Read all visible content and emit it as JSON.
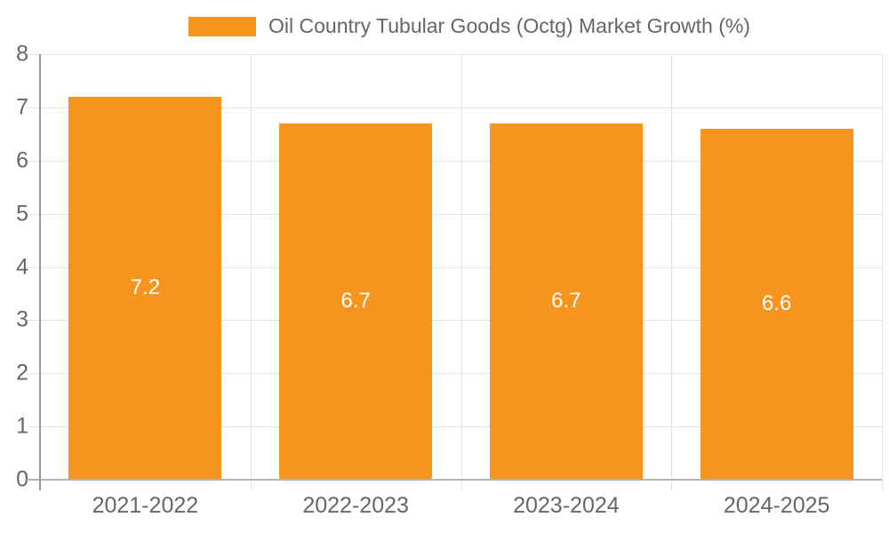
{
  "legend": {
    "label": "Oil Country Tubular Goods (Octg) Market Growth (%)"
  },
  "chart_data": {
    "type": "bar",
    "title": "Oil Country Tubular Goods (Octg) Market Growth (%)",
    "categories": [
      "2021-2022",
      "2022-2023",
      "2023-2024",
      "2024-2025"
    ],
    "series": [
      {
        "name": "Oil Country Tubular Goods (Octg) Market Growth (%)",
        "values": [
          7.2,
          6.7,
          6.7,
          6.6
        ]
      }
    ],
    "value_labels": [
      "7.2",
      "6.7",
      "6.7",
      "6.6"
    ],
    "xlabel": "",
    "ylabel": "",
    "ylim": [
      0,
      8
    ],
    "yticks": [
      0,
      1,
      2,
      3,
      4,
      5,
      6,
      7,
      8
    ],
    "grid": true,
    "legend_position": "top",
    "colors": {
      "bar": "#F7941E",
      "value_label": "#FFFFFF",
      "axis_text": "#666666",
      "gridline": "#E4E4E4"
    }
  }
}
